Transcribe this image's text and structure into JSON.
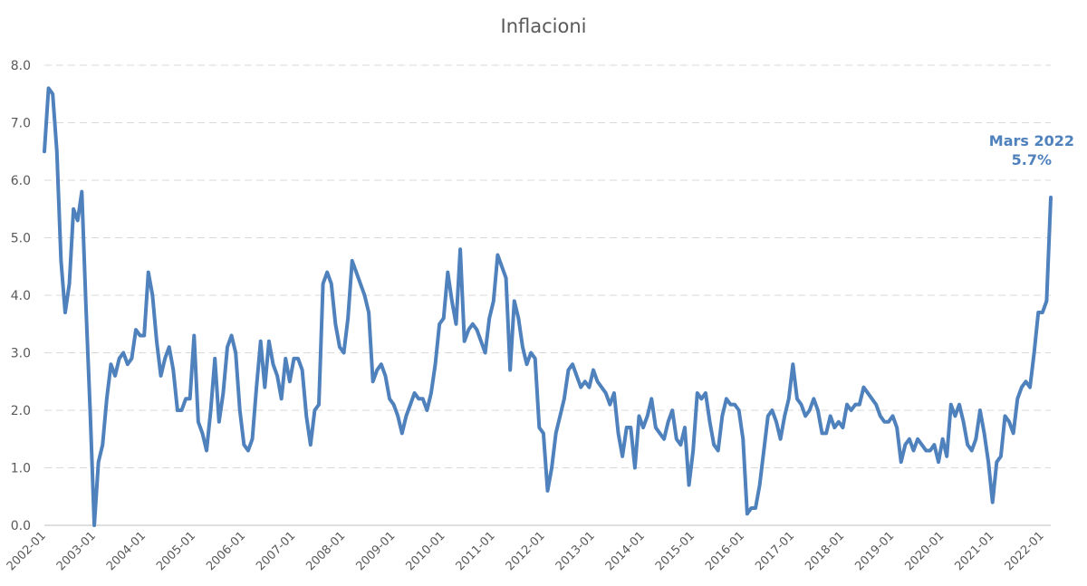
{
  "colors": {
    "series": "#4f81bd",
    "text": "#595959",
    "grid": "#d9d9d9"
  },
  "chart_data": {
    "type": "line",
    "title": "Inflacioni",
    "xlabel": "",
    "ylabel": "",
    "ylim": [
      0,
      8
    ],
    "yticks": [
      0,
      1,
      2,
      3,
      4,
      5,
      6,
      7,
      8
    ],
    "ytick_labels": [
      "0.0",
      "1.0",
      "2.0",
      "3.0",
      "4.0",
      "5.0",
      "6.0",
      "7.0",
      "8.0"
    ],
    "xtick_labels": [
      "2002-01",
      "2003-01",
      "2004-01",
      "2005-01",
      "2006-01",
      "2007-01",
      "2008-01",
      "2009-01",
      "2010-01",
      "2011-01",
      "2012-01",
      "2013-01",
      "2014-01",
      "2015-01",
      "2016-01",
      "2017-01",
      "2018-01",
      "2019-01",
      "2020-01",
      "2021-01",
      "2022-01"
    ],
    "grid": true,
    "legend": "none",
    "x_start": "2002-01",
    "x_end": "2022-03",
    "frequency": "monthly",
    "series": [
      {
        "values": [
          6.5,
          7.6,
          7.5,
          6.5,
          4.6,
          3.7,
          4.2,
          5.5,
          5.3,
          5.8,
          3.8,
          2.0,
          0.0,
          1.1,
          1.4,
          2.2,
          2.8,
          2.6,
          2.9,
          3.0,
          2.8,
          2.9,
          3.4,
          3.3,
          3.3,
          4.4,
          4.0,
          3.2,
          2.6,
          2.9,
          3.1,
          2.7,
          2.0,
          2.0,
          2.2,
          2.2,
          3.3,
          1.8,
          1.6,
          1.3,
          2.0,
          2.9,
          1.8,
          2.3,
          3.1,
          3.3,
          3.0,
          2.0,
          1.4,
          1.3,
          1.5,
          2.4,
          3.2,
          2.4,
          3.2,
          2.8,
          2.6,
          2.2,
          2.9,
          2.5,
          2.9,
          2.9,
          2.7,
          1.9,
          1.4,
          2.0,
          2.1,
          4.2,
          4.4,
          4.2,
          3.5,
          3.1,
          3.0,
          3.6,
          4.6,
          4.4,
          4.2,
          4.0,
          3.7,
          2.5,
          2.7,
          2.8,
          2.6,
          2.2,
          2.1,
          1.9,
          1.6,
          1.9,
          2.1,
          2.3,
          2.2,
          2.2,
          2.0,
          2.3,
          2.8,
          3.5,
          3.6,
          4.4,
          3.9,
          3.5,
          4.8,
          3.2,
          3.4,
          3.5,
          3.4,
          3.2,
          3.0,
          3.6,
          3.9,
          4.7,
          4.5,
          4.3,
          2.7,
          3.9,
          3.6,
          3.1,
          2.8,
          3.0,
          2.9,
          1.7,
          1.6,
          0.6,
          1.0,
          1.6,
          1.9,
          2.2,
          2.7,
          2.8,
          2.6,
          2.4,
          2.5,
          2.4,
          2.7,
          2.5,
          2.4,
          2.3,
          2.1,
          2.3,
          1.6,
          1.2,
          1.7,
          1.7,
          1.0,
          1.9,
          1.7,
          1.9,
          2.2,
          1.7,
          1.6,
          1.5,
          1.8,
          2.0,
          1.5,
          1.4,
          1.7,
          0.7,
          1.3,
          2.3,
          2.2,
          2.3,
          1.8,
          1.4,
          1.3,
          1.9,
          2.2,
          2.1,
          2.1,
          2.0,
          1.5,
          0.2,
          0.3,
          0.3,
          0.7,
          1.3,
          1.9,
          2.0,
          1.8,
          1.5,
          1.9,
          2.2,
          2.8,
          2.2,
          2.1,
          1.9,
          2.0,
          2.2,
          2.0,
          1.6,
          1.6,
          1.9,
          1.7,
          1.8,
          1.7,
          2.1,
          2.0,
          2.1,
          2.1,
          2.4,
          2.3,
          2.2,
          2.1,
          1.9,
          1.8,
          1.8,
          1.9,
          1.7,
          1.1,
          1.4,
          1.5,
          1.3,
          1.5,
          1.4,
          1.3,
          1.3,
          1.4,
          1.1,
          1.5,
          1.2,
          2.1,
          1.9,
          2.1,
          1.8,
          1.4,
          1.3,
          1.5,
          2.0,
          1.6,
          1.1,
          0.4,
          1.1,
          1.2,
          1.9,
          1.8,
          1.6,
          2.2,
          2.4,
          2.5,
          2.4,
          3.0,
          3.7,
          3.7,
          3.9,
          5.7
        ]
      }
    ],
    "annotation": {
      "line1": "Mars 2022",
      "line2": "5.7%",
      "x": "2022-03",
      "y": 5.7
    }
  }
}
